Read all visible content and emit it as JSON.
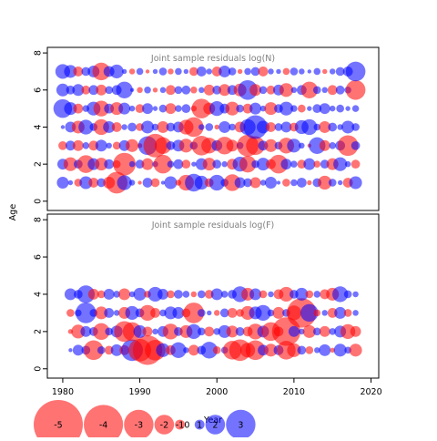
{
  "colors": {
    "positive": "#0000FF",
    "negative": "#FF0000",
    "frame": "#000000",
    "title": "#808080"
  },
  "chart_data": {
    "type": "bubble",
    "xlabel": "Year",
    "ylabel": "Age",
    "xlim": [
      1978,
      2021
    ],
    "ylim": [
      -0.5,
      8.3
    ],
    "x_ticks": [
      1980,
      1990,
      2000,
      2010,
      2020
    ],
    "y_ticks": [
      0,
      2,
      4,
      6,
      8
    ],
    "bubble_alpha": 0.55,
    "legend": {
      "labels": [
        "-5",
        "-4",
        "-3",
        "-2",
        "-1",
        "0",
        "1",
        "2",
        "3"
      ],
      "values": [
        -5,
        -4,
        -3,
        -2,
        -1,
        0,
        1,
        2,
        3
      ]
    },
    "panels": [
      {
        "title": "Joint sample residuals log(N)",
        "years": [
          1980,
          1981,
          1982,
          1983,
          1984,
          1985,
          1986,
          1987,
          1988,
          1989,
          1990,
          1991,
          1992,
          1993,
          1994,
          1995,
          1996,
          1997,
          1998,
          1999,
          2000,
          2001,
          2002,
          2003,
          2004,
          2005,
          2006,
          2007,
          2008,
          2009,
          2010,
          2011,
          2012,
          2013,
          2014,
          2015,
          2016,
          2017,
          2018
        ],
        "ages": [
          1,
          2,
          3,
          4,
          5,
          6,
          7
        ],
        "residuals": [
          [
            1.2,
            0.5,
            -0.8,
            1.3,
            -1.0,
            0.9,
            -1.2,
            -2.2,
            1.5,
            0.6,
            -0.4,
            1.0,
            -0.9,
            0.4,
            1.3,
            -0.6,
            -1.6,
            1.8,
            1.4,
            -0.9,
            1.6,
            0.8,
            -1.7,
            1.1,
            0.9,
            -1.1,
            0.6,
            1.2,
            0.4,
            -0.8,
            0.7,
            1.0,
            -0.5,
            0.9,
            -1.4,
            0.8,
            0.5,
            -1.0,
            1.3
          ],
          [
            1.1,
            -1.4,
            0.9,
            -1.8,
            1.2,
            -1.3,
            1.0,
            -0.8,
            -2.3,
            0.6,
            0.9,
            -1.2,
            0.6,
            -1.9,
            0.7,
            1.0,
            -0.9,
            0.5,
            1.2,
            -1.3,
            0.9,
            0.6,
            -1.1,
            1.5,
            -1.7,
            0.8,
            1.3,
            -1.0,
            -1.9,
            1.1,
            0.7,
            -0.9,
            1.2,
            -0.7,
            0.9,
            -1.2,
            1.4,
            0.6,
            -0.9
          ],
          [
            -0.9,
            1.0,
            -1.1,
            0.7,
            -1.0,
            1.2,
            0.6,
            -0.8,
            1.1,
            -1.3,
            -0.5,
            1.9,
            -2.4,
            -1.7,
            0.9,
            1.2,
            -1.4,
            0.8,
            -2.0,
            -1.6,
            1.1,
            -1.8,
            -1.2,
            0.7,
            -2.2,
            -1.9,
            1.0,
            -1.3,
            0.8,
            -1.6,
            1.4,
            0.6,
            -0.4,
            1.7,
            -1.1,
            0.7,
            1.0,
            -2.1,
            0.9
          ],
          [
            0.4,
            1.1,
            -1.3,
            1.5,
            0.8,
            -1.6,
            1.2,
            -1.0,
            0.6,
            0.9,
            -0.8,
            1.3,
            0.7,
            -1.2,
            0.9,
            1.1,
            -1.5,
            -2.0,
            0.6,
            0.8,
            -0.5,
            1.2,
            0.7,
            -1.1,
            1.6,
            2.4,
            1.3,
            -1.0,
            0.8,
            1.1,
            -0.9,
            1.4,
            1.6,
            0.7,
            -1.2,
            0.9,
            0.6,
            1.3,
            0.8
          ],
          [
            1.9,
            1.3,
            -1.0,
            0.7,
            1.4,
            -1.6,
            1.0,
            -1.3,
            1.2,
            0.6,
            -0.9,
            1.1,
            0.5,
            0.8,
            -1.1,
            0.7,
            0.9,
            -0.6,
            -2.0,
            -1.2,
            1.5,
            1.0,
            -1.4,
            0.8,
            -1.0,
            1.2,
            0.6,
            -1.3,
            0.9,
            1.4,
            0.7,
            -0.8,
            0.5,
            0.9,
            1.1,
            0.6,
            0.8,
            0.5,
            0.7
          ],
          [
            1.3,
            0.9,
            1.2,
            -0.9,
            1.0,
            -1.1,
            0.8,
            1.0,
            1.7,
            0.4,
            -0.6,
            0.7,
            -0.5,
            0.6,
            -1.0,
            0.8,
            0.9,
            -0.7,
            0.6,
            -1.1,
            0.9,
            -1.2,
            1.0,
            -1.3,
            2.0,
            -1.2,
            0.8,
            -0.9,
            1.1,
            -1.4,
            0.6,
            1.0,
            -1.7,
            0.8,
            0.6,
            -1.0,
            0.9,
            0.7,
            -2.0
          ],
          [
            1.5,
            1.3,
            -1.0,
            0.9,
            1.2,
            -1.8,
            1.1,
            1.4,
            0.5,
            -0.6,
            0.7,
            -0.4,
            0.5,
            0.8,
            -0.6,
            0.7,
            0.5,
            -0.9,
            1.0,
            0.6,
            -1.0,
            1.2,
            0.8,
            -0.5,
            0.7,
            0.9,
            -1.0,
            0.6,
            0.5,
            -0.7,
            0.8,
            0.6,
            0.4,
            0.7,
            -0.5,
            0.6,
            0.9,
            1.0,
            2.0
          ]
        ]
      },
      {
        "title": "Joint sample residuals log(F)",
        "years": [
          1981,
          1982,
          1983,
          1984,
          1985,
          1986,
          1987,
          1988,
          1989,
          1990,
          1991,
          1992,
          1993,
          1994,
          1995,
          1996,
          1997,
          1998,
          1999,
          2000,
          2001,
          2002,
          2003,
          2004,
          2005,
          2006,
          2007,
          2008,
          2009,
          2010,
          2011,
          2012,
          2013,
          2014,
          2015,
          2016,
          2017,
          2018
        ],
        "ages": [
          1,
          2,
          3,
          4
        ],
        "residuals": [
          [
            0.4,
            1.1,
            0.9,
            -2.0,
            0.8,
            -0.9,
            1.2,
            -1.0,
            2.2,
            -2.3,
            -3.0,
            -2.1,
            1.4,
            -1.0,
            1.6,
            0.6,
            -1.1,
            0.9,
            1.7,
            -0.8,
            0.7,
            -1.9,
            -2.2,
            -1.5,
            -2.0,
            1.1,
            -1.3,
            1.0,
            -1.9,
            -1.4,
            0.9,
            -0.8,
            0.6,
            1.2,
            -0.5,
            1.3,
            0.7,
            -1.3
          ],
          [
            -0.5,
            -1.4,
            1.1,
            0.9,
            -1.7,
            0.8,
            1.2,
            -2.1,
            -1.9,
            1.3,
            -1.0,
            0.6,
            1.1,
            -1.6,
            0.9,
            -1.3,
            1.5,
            0.8,
            -1.0,
            0.7,
            1.3,
            -1.2,
            0.9,
            -1.0,
            -1.6,
            1.2,
            -1.9,
            -1.0,
            -2.9,
            1.1,
            0.6,
            -1.3,
            0.8,
            -1.1,
            0.7,
            1.2,
            -1.5,
            -1.1
          ],
          [
            -0.8,
            0.7,
            2.1,
            0.8,
            -1.3,
            1.0,
            0.6,
            -1.2,
            1.4,
            0.9,
            -1.6,
            -1.0,
            0.7,
            1.3,
            1.2,
            -0.9,
            -2.1,
            0.8,
            0.5,
            -0.6,
            0.9,
            -1.0,
            -0.8,
            -1.4,
            1.3,
            1.6,
            0.7,
            -1.2,
            0.8,
            -1.5,
            -3.0,
            1.8,
            -0.7,
            0.6,
            -1.0,
            1.2,
            -0.8,
            0.6
          ],
          [
            1.2,
            0.9,
            1.8,
            -1.1,
            -0.8,
            1.1,
            0.7,
            -1.2,
            0.6,
            1.3,
            -0.7,
            1.5,
            1.1,
            -0.8,
            0.9,
            0.7,
            -0.6,
            0.8,
            -0.9,
            1.2,
            0.7,
            0.9,
            1.6,
            -1.3,
            1.2,
            -0.8,
            0.6,
            -1.0,
            -1.5,
            0.9,
            1.3,
            -0.8,
            0.7,
            -1.0,
            -1.3,
            1.6,
            0.8,
            0.6
          ]
        ]
      }
    ]
  }
}
